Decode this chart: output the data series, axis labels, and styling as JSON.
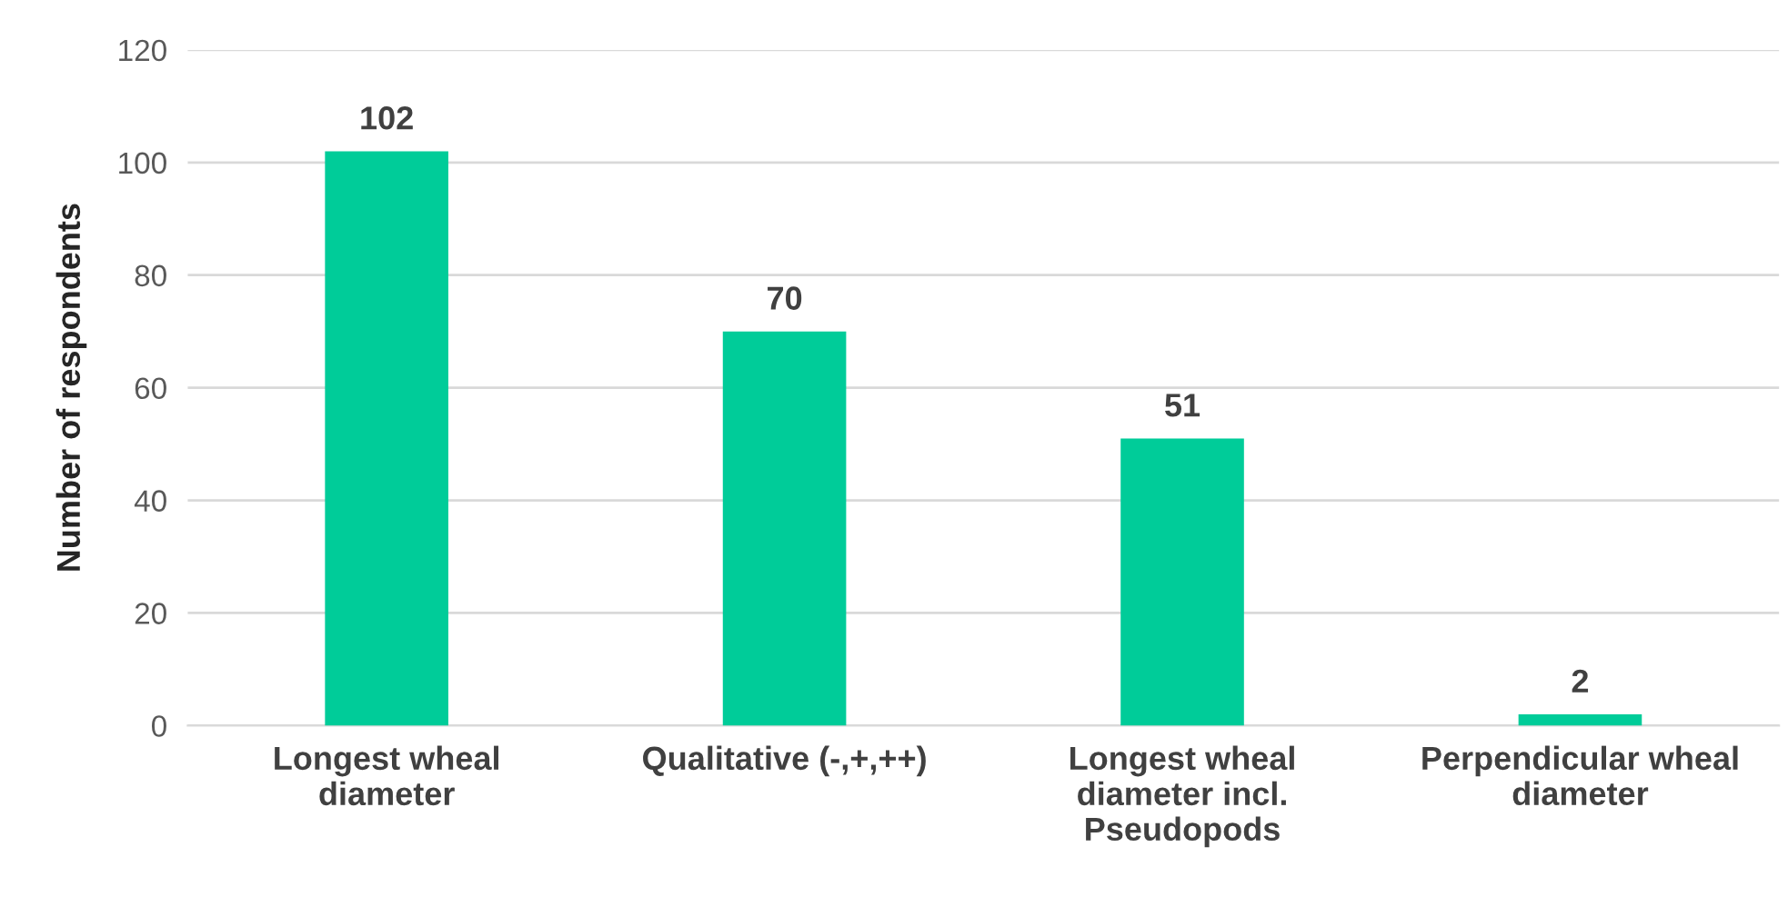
{
  "chart_data": {
    "type": "bar",
    "ylabel": "Number of respondents",
    "categories": [
      "Longest wheal diameter",
      "Qualitative (-,+,++)",
      "Longest wheal diameter incl. Pseudopods",
      "Perpendicular wheal diameter"
    ],
    "values": [
      102,
      70,
      51,
      2
    ],
    "color": "#00cc99",
    "ylim": [
      0,
      120
    ],
    "yticks": [
      0,
      20,
      40,
      60,
      80,
      100,
      120
    ],
    "grid": "y",
    "data_labels": true
  }
}
